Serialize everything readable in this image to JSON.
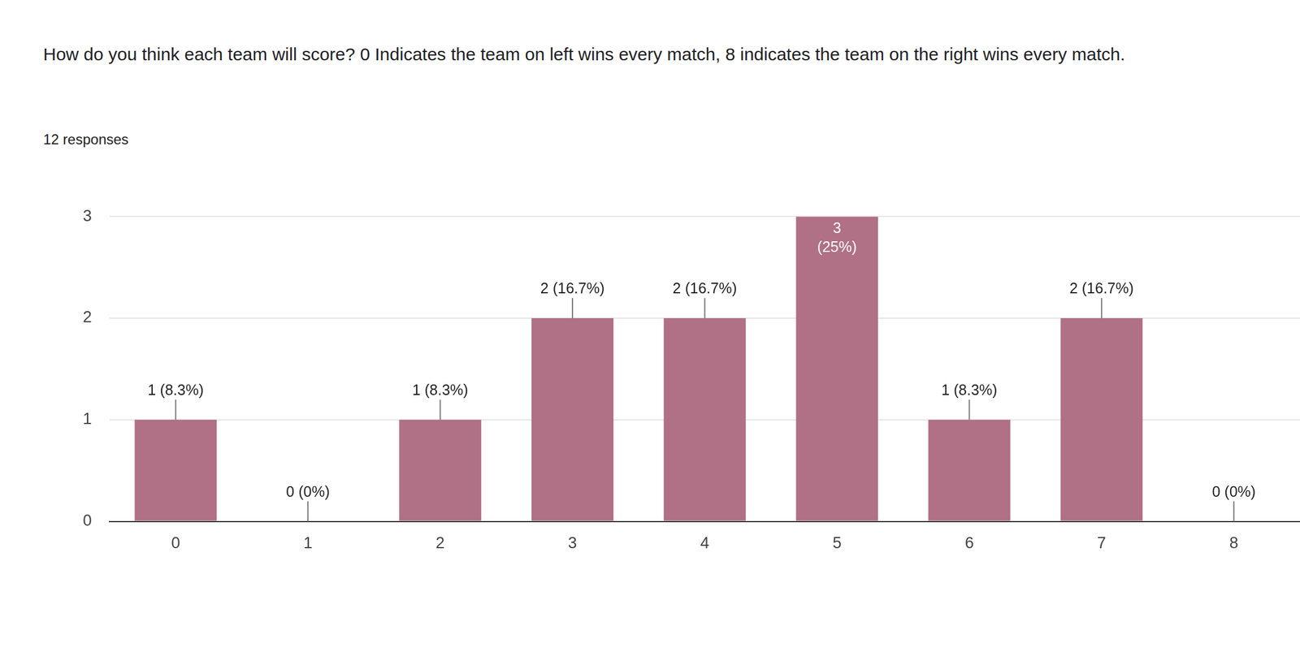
{
  "chart_data": {
    "type": "bar",
    "title": "How do you think each team will score? 0 Indicates the team on left wins every match, 8 indicates the team on the right wins every match.",
    "subtitle": "12 responses",
    "categories": [
      "0",
      "1",
      "2",
      "3",
      "4",
      "5",
      "6",
      "7",
      "8"
    ],
    "values": [
      1,
      0,
      1,
      2,
      2,
      3,
      1,
      2,
      0
    ],
    "value_labels": [
      "1 (8.3%)",
      "0 (0%)",
      "1 (8.3%)",
      "2 (16.7%)",
      "2 (16.7%)",
      "3 (25%)",
      "1 (8.3%)",
      "2 (16.7%)",
      "0 (0%)"
    ],
    "data_labels": true,
    "color": "#b07085",
    "ylim": [
      0,
      3
    ],
    "yticks": [
      0,
      1,
      2,
      3
    ],
    "grid": true
  }
}
